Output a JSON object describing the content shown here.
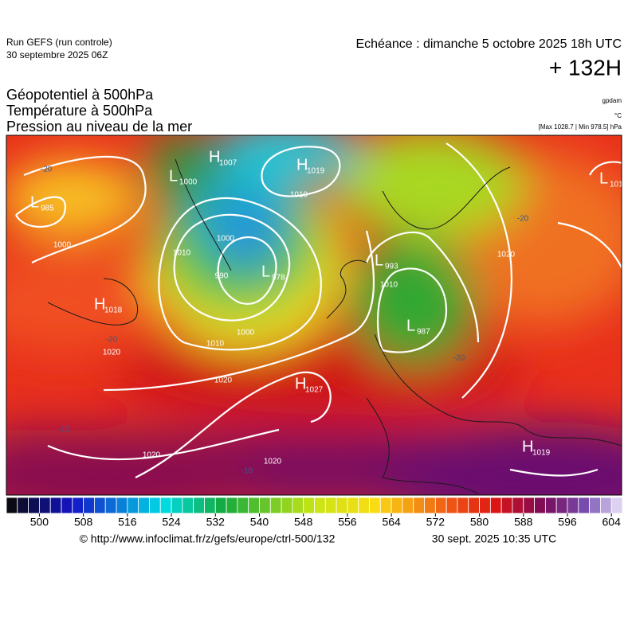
{
  "header": {
    "run": "Run GEFS (run controle)",
    "date": "30 septembre 2025 06Z",
    "echeance": "Echéance : dimanche 5 octobre 2025 18h UTC",
    "lead": "+ 132H"
  },
  "titles": [
    "Géopotentiel à 500hPa",
    "Température à 500hPa",
    "Pression au niveau de la mer"
  ],
  "units": [
    "gpdam",
    "°C",
    "[Max 1028.7 | Min 978.5] hPa"
  ],
  "centers": [
    {
      "type": "L",
      "value": "985"
    },
    {
      "type": "L",
      "value": "1000"
    },
    {
      "type": "H",
      "value": "1007"
    },
    {
      "type": "H",
      "value": "1019"
    },
    {
      "type": "L",
      "value": "978"
    },
    {
      "type": "H",
      "value": "1018"
    },
    {
      "type": "L",
      "value": "993"
    },
    {
      "type": "L",
      "value": "987"
    },
    {
      "type": "H",
      "value": "1027"
    },
    {
      "type": "H",
      "value": "1019"
    },
    {
      "type": "L",
      "value": "101"
    }
  ],
  "isobar_labels": [
    "1010",
    "1000",
    "990",
    "1010",
    "1000",
    "1010",
    "1020",
    "1020",
    "1020",
    "1020",
    "1010",
    "1020",
    "1000"
  ],
  "temp_labels": [
    "-20",
    "-20",
    "-20",
    "-20",
    "-10",
    "-10"
  ],
  "scale": {
    "min": 494,
    "max": 606,
    "step": 2,
    "ticks": [
      500,
      508,
      516,
      524,
      532,
      540,
      548,
      556,
      564,
      572,
      580,
      588,
      596,
      604
    ]
  },
  "footer": {
    "url": "© http://www.infoclimat.fr/z/gefs/europe/ctrl-500/132",
    "time": "30 sept. 2025 10:35 UTC"
  }
}
